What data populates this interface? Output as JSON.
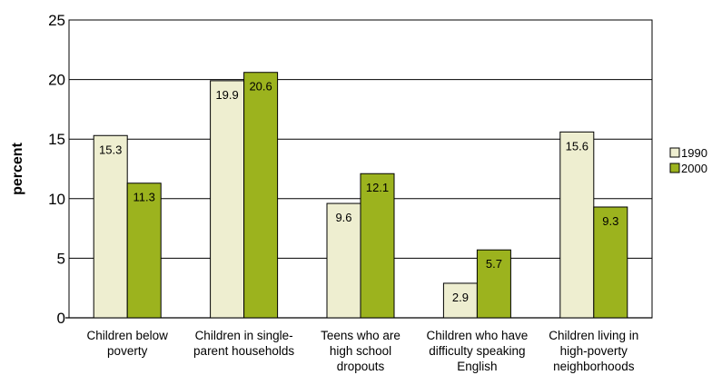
{
  "chart_data": {
    "type": "bar",
    "categories": [
      [
        "Children below",
        "poverty"
      ],
      [
        "Children in single-",
        "parent households"
      ],
      [
        "Teens who are",
        "high school",
        "dropouts"
      ],
      [
        "Children who have",
        "difficulty speaking",
        "English"
      ],
      [
        "Children living in",
        "high-poverty",
        "neighborhoods"
      ]
    ],
    "series": [
      {
        "name": "1990",
        "values": [
          15.3,
          19.9,
          9.6,
          2.9,
          15.6
        ],
        "color": "#eeeed0"
      },
      {
        "name": "2000",
        "values": [
          11.3,
          20.6,
          12.1,
          5.7,
          9.3
        ],
        "color": "#9cb31e"
      }
    ],
    "value_labels": [
      [
        "15.3",
        "19.9",
        "9.6",
        "2.9",
        "15.6"
      ],
      [
        "11.3",
        "20.6",
        "12.1",
        "5.7",
        "9.3"
      ]
    ],
    "title": "",
    "xlabel": "",
    "ylabel": "percent",
    "ylim": [
      0,
      25
    ],
    "yticks": [
      "0",
      "5",
      "10",
      "15",
      "20",
      "25"
    ],
    "grid": true,
    "legend_position": "right"
  }
}
